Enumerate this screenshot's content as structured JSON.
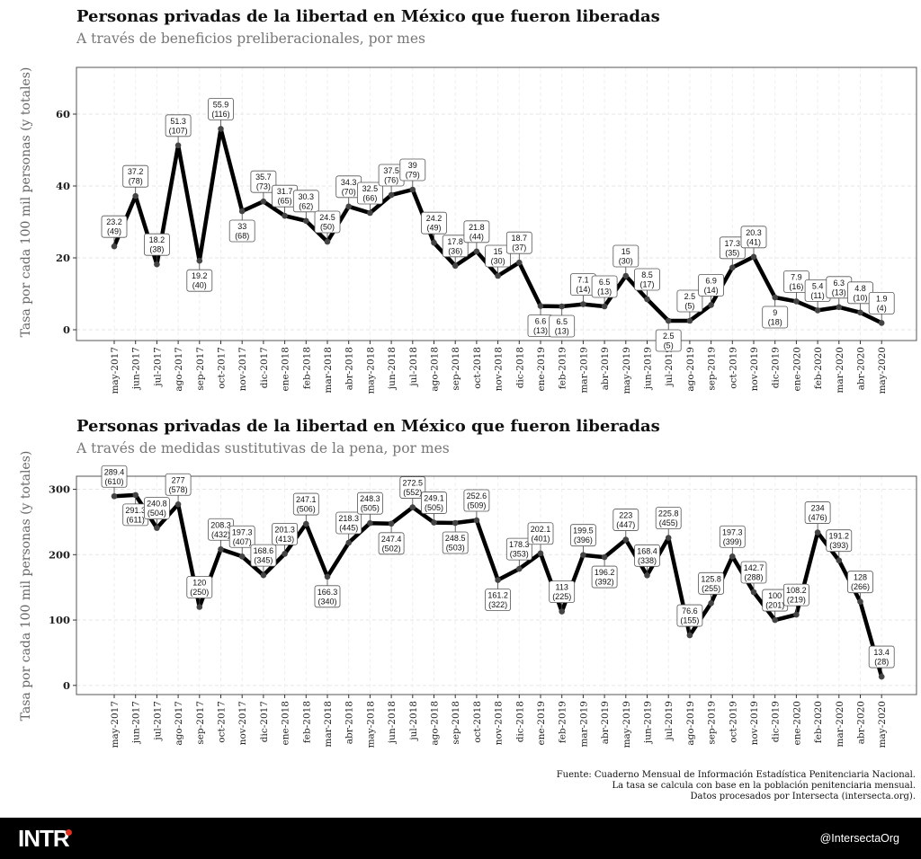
{
  "chart_data": [
    {
      "type": "line",
      "title": "Personas privadas de la libertad en México que fueron liberadas",
      "subtitle": "A través de beneficios preliberacionales, por mes",
      "ylabel": "Tasa por cada 100 mil personas (y totales)",
      "xlabel": "",
      "ylim": [
        -3,
        73
      ],
      "yticks": [
        0,
        20,
        40,
        60
      ],
      "categories": [
        "may-2017",
        "jun-2017",
        "jul-2017",
        "ago-2017",
        "sep-2017",
        "oct-2017",
        "nov-2017",
        "dic-2017",
        "ene-2018",
        "feb-2018",
        "mar-2018",
        "abr-2018",
        "may-2018",
        "jun-2018",
        "jul-2018",
        "ago-2018",
        "sep-2018",
        "oct-2018",
        "nov-2018",
        "dic-2018",
        "ene-2019",
        "feb-2019",
        "mar-2019",
        "abr-2019",
        "may-2019",
        "jun-2019",
        "jul-2019",
        "ago-2019",
        "sep-2019",
        "oct-2019",
        "nov-2019",
        "dic-2019",
        "ene-2020",
        "feb-2020",
        "mar-2020",
        "abr-2020",
        "may-2020"
      ],
      "values": [
        23.2,
        37.2,
        18.2,
        51.3,
        19.2,
        55.9,
        33,
        35.7,
        31.7,
        30.3,
        24.5,
        34.3,
        32.5,
        37.5,
        39,
        24.2,
        17.8,
        21.8,
        15,
        18.7,
        6.6,
        6.5,
        7.1,
        6.5,
        15,
        8.5,
        2.5,
        2.5,
        6.9,
        17.3,
        20.3,
        9,
        7.9,
        5.4,
        6.3,
        4.8,
        1.9
      ],
      "value_labels": [
        "23.2",
        "37.2",
        "18.2",
        "51.3",
        "19.2",
        "55.9",
        "33",
        "35.7",
        "31.7",
        "30.3",
        "24.5",
        "34.3",
        "32.5",
        "37.5",
        "39",
        "24.2",
        "17.8",
        "21.8",
        "15",
        "18.7",
        "6.6",
        "6.5",
        "7.1",
        "6.5",
        "15",
        "8.5",
        "2.5",
        "2.5",
        "6.9",
        "17.3",
        "20.3",
        "9",
        "7.9",
        "5.4",
        "6.3",
        "4.8",
        "1.9"
      ],
      "totals": [
        "(49)",
        "(78)",
        "(38)",
        "(107)",
        "(40)",
        "(116)",
        "(68)",
        "(73)",
        "(65)",
        "(62)",
        "(50)",
        "(70)",
        "(66)",
        "(76)",
        "(79)",
        "(49)",
        "(36)",
        "(44)",
        "(30)",
        "(37)",
        "(13)",
        "(13)",
        "(14)",
        "(13)",
        "(30)",
        "(17)",
        "(5)",
        "(5)",
        "(14)",
        "(35)",
        "(41)",
        "(18)",
        "(16)",
        "(11)",
        "(13)",
        "(10)",
        "(4)"
      ],
      "label_side": [
        "up",
        "up",
        "up",
        "up",
        "down",
        "up",
        "down",
        "up",
        "up",
        "up",
        "up",
        "up",
        "up",
        "up",
        "up",
        "up",
        "up",
        "up",
        "up",
        "up",
        "down",
        "down",
        "up",
        "up",
        "up",
        "up",
        "down",
        "up",
        "up",
        "up",
        "up",
        "down",
        "up",
        "up",
        "up",
        "up",
        "up"
      ],
      "line_color": "#000000",
      "point_color": "#444444"
    },
    {
      "type": "line",
      "title": "Personas privadas de la libertad en México que fueron liberadas",
      "subtitle": "A través de medidas sustitutivas de la pena, por mes",
      "ylabel": "Tasa por cada 100 mil personas (y totales)",
      "xlabel": "",
      "ylim": [
        -14,
        320
      ],
      "yticks": [
        0,
        100,
        200,
        300
      ],
      "categories": [
        "may-2017",
        "jun-2017",
        "jul-2017",
        "ago-2017",
        "sep-2017",
        "oct-2017",
        "nov-2017",
        "dic-2017",
        "ene-2018",
        "feb-2018",
        "mar-2018",
        "abr-2018",
        "may-2018",
        "jun-2018",
        "jul-2018",
        "ago-2018",
        "sep-2018",
        "oct-2018",
        "nov-2018",
        "dic-2018",
        "ene-2019",
        "feb-2019",
        "mar-2019",
        "abr-2019",
        "may-2019",
        "jun-2019",
        "jul-2019",
        "ago-2019",
        "sep-2019",
        "oct-2019",
        "nov-2019",
        "dic-2019",
        "ene-2020",
        "feb-2020",
        "mar-2020",
        "abr-2020",
        "may-2020"
      ],
      "values": [
        289.4,
        291.3,
        240.8,
        277,
        120,
        208.3,
        197.3,
        168.6,
        201.3,
        247.1,
        166.3,
        218.3,
        248.3,
        247.4,
        272.5,
        249.1,
        248.5,
        252.6,
        161.2,
        178.3,
        202.1,
        113,
        199.5,
        196.2,
        223,
        168.4,
        225.8,
        76.6,
        125.8,
        197.3,
        142.7,
        100,
        108.2,
        234,
        191.2,
        128,
        13.4
      ],
      "value_labels": [
        "289.4",
        "291.3",
        "240.8",
        "277",
        "120",
        "208.3",
        "197.3",
        "168.6",
        "201.3",
        "247.1",
        "166.3",
        "218.3",
        "248.3",
        "247.4",
        "272.5",
        "249.1",
        "248.5",
        "252.6",
        "161.2",
        "178.3",
        "202.1",
        "113",
        "199.5",
        "196.2",
        "223",
        "168.4",
        "225.8",
        "76.6",
        "125.8",
        "197.3",
        "142.7",
        "100",
        "108.2",
        "234",
        "191.2",
        "128",
        "13.4"
      ],
      "totals": [
        "(610)",
        "(611)",
        "(504)",
        "(578)",
        "(250)",
        "(432)",
        "(407)",
        "(345)",
        "(413)",
        "(506)",
        "(340)",
        "(445)",
        "(505)",
        "(502)",
        "(552)",
        "(505)",
        "(503)",
        "(509)",
        "(322)",
        "(353)",
        "(401)",
        "(225)",
        "(396)",
        "(392)",
        "(447)",
        "(338)",
        "(455)",
        "(155)",
        "(255)",
        "(399)",
        "(288)",
        "(201)",
        "(219)",
        "(476)",
        "(393)",
        "(266)",
        "(28)"
      ],
      "label_side": [
        "up",
        "down",
        "up",
        "up",
        "up",
        "up",
        "up",
        "up",
        "up",
        "up",
        "down",
        "up",
        "up",
        "down",
        "up",
        "up",
        "down",
        "up",
        "down",
        "up",
        "up",
        "up",
        "up",
        "down",
        "up",
        "up",
        "up",
        "up",
        "up",
        "up",
        "up",
        "up",
        "up",
        "up",
        "up",
        "up",
        "up"
      ],
      "line_color": "#000000",
      "point_color": "#444444"
    }
  ],
  "source": {
    "line1": "Fuente: Cuaderno Mensual de Información Estadística Penitenciaria Nacional.",
    "line2": "La tasa se calcula con base en la población penitenciaria mensual.",
    "line3": "Datos procesados por Intersecta (intersecta.org)."
  },
  "footer": {
    "logo_text": "INTR",
    "handle": "@IntersectaOrg",
    "bg_color": "#000000",
    "accent_color": "#e0301e"
  }
}
